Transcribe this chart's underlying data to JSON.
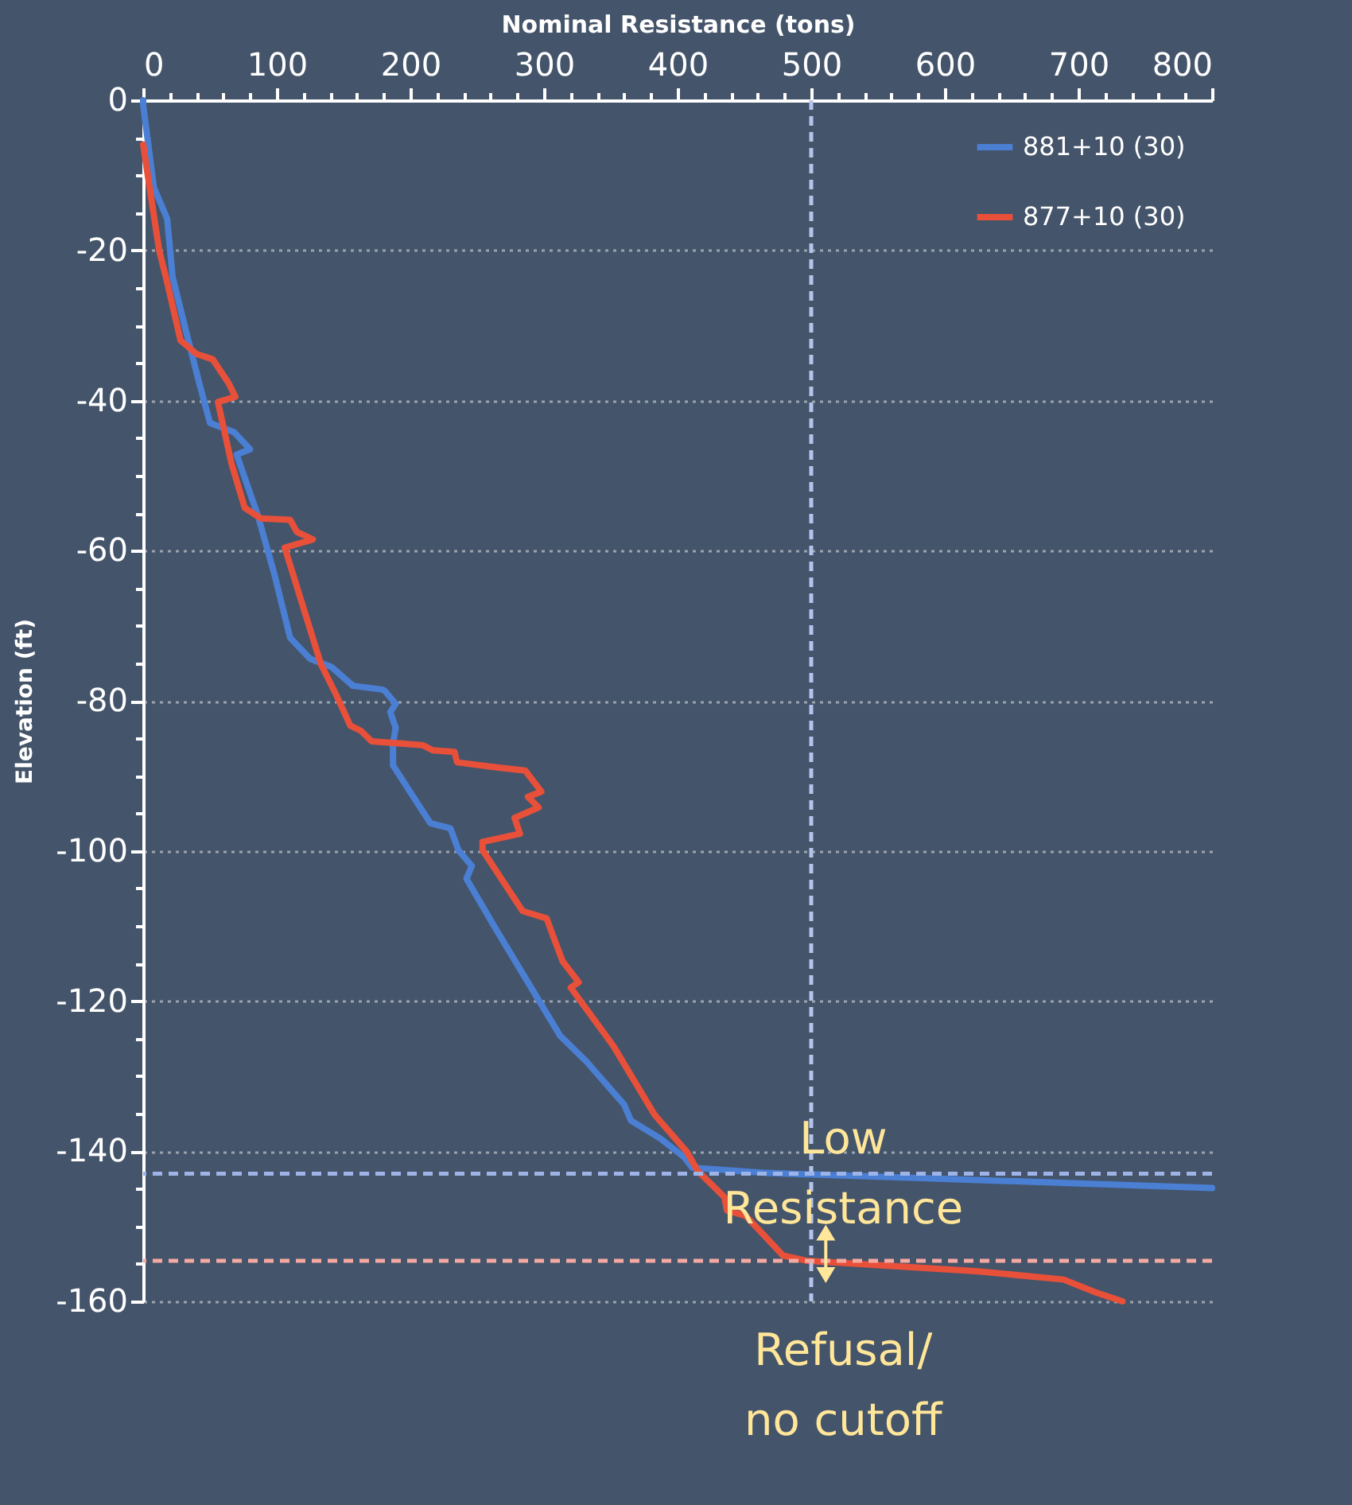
{
  "chart_data": {
    "type": "line",
    "xlabel": "Nominal Resistance (tons)",
    "ylabel": "Elevation (ft)",
    "xlim": [
      0,
      800
    ],
    "ylim": [
      -160,
      0
    ],
    "xticks": [
      0,
      {
        "value": 20,
        "label": null
      },
      {
        "value": 40,
        "label": null
      },
      {
        "value": 60,
        "label": null
      },
      {
        "value": 80,
        "label": null
      },
      100,
      {
        "value": 120,
        "label": null
      },
      {
        "value": 140,
        "label": null
      },
      {
        "value": 160,
        "label": null
      },
      {
        "value": 180,
        "label": null
      },
      200,
      {
        "value": 220,
        "label": null
      },
      {
        "value": 240,
        "label": null
      },
      {
        "value": 260,
        "label": null
      },
      {
        "value": 280,
        "label": null
      },
      300,
      {
        "value": 320,
        "label": null
      },
      {
        "value": 340,
        "label": null
      },
      {
        "value": 360,
        "label": null
      },
      {
        "value": 380,
        "label": null
      },
      400,
      {
        "value": 420,
        "label": null
      },
      {
        "value": 440,
        "label": null
      },
      {
        "value": 460,
        "label": null
      },
      {
        "value": 480,
        "label": null
      },
      500,
      {
        "value": 520,
        "label": null
      },
      {
        "value": 540,
        "label": null
      },
      {
        "value": 560,
        "label": null
      },
      {
        "value": 580,
        "label": null
      },
      600,
      {
        "value": 620,
        "label": null
      },
      {
        "value": 640,
        "label": null
      },
      {
        "value": 660,
        "label": null
      },
      {
        "value": 680,
        "label": null
      },
      700,
      {
        "value": 720,
        "label": null
      },
      {
        "value": 740,
        "label": null
      },
      {
        "value": 760,
        "label": null
      },
      {
        "value": 780,
        "label": null
      },
      800
    ],
    "yticks": [
      0,
      {
        "value": -5,
        "label": null
      },
      {
        "value": -10,
        "label": null
      },
      {
        "value": -15,
        "label": null
      },
      -20,
      {
        "value": -25,
        "label": null
      },
      {
        "value": -30,
        "label": null
      },
      {
        "value": -35,
        "label": null
      },
      -40,
      {
        "value": -45,
        "label": null
      },
      {
        "value": -50,
        "label": null
      },
      {
        "value": -55,
        "label": null
      },
      -60,
      {
        "value": -65,
        "label": null
      },
      {
        "value": -70,
        "label": null
      },
      {
        "value": -75,
        "label": null
      },
      -80,
      {
        "value": -85,
        "label": null
      },
      {
        "value": -90,
        "label": null
      },
      {
        "value": -95,
        "label": null
      },
      -100,
      {
        "value": -105,
        "label": null
      },
      {
        "value": -110,
        "label": null
      },
      {
        "value": -115,
        "label": null
      },
      -120,
      {
        "value": -125,
        "label": null
      },
      {
        "value": -130,
        "label": null
      },
      {
        "value": -135,
        "label": null
      },
      -140,
      {
        "value": -145,
        "label": null
      },
      {
        "value": -150,
        "label": null
      },
      {
        "value": -155,
        "label": null
      },
      -160
    ],
    "grid": "y",
    "legend": "top right",
    "marker": "none",
    "line_style": "solid",
    "series": [
      {
        "name": "881+10 (30)",
        "color": "#4a7fd4",
        "x": [
          0,
          0,
          8,
          18,
          22,
          32,
          42,
          50,
          68,
          80,
          70,
          86,
          98,
          110,
          125,
          141,
          157,
          179,
          181,
          189,
          185,
          189,
          187,
          187,
          215,
          230,
          236,
          246,
          242,
          264,
          288,
          312,
          332,
          360,
          365,
          387,
          405,
          411,
          467,
          586,
          800
        ],
        "values": [
          0,
          -0.6,
          -11.6,
          -15.8,
          -23.5,
          -30.7,
          -37.7,
          -43,
          -44.2,
          -46.5,
          -47.2,
          -55.4,
          -63,
          -71.6,
          -74.4,
          -75.5,
          -78,
          -78.5,
          -78.7,
          -80.4,
          -81.5,
          -83.6,
          -85.7,
          -88.6,
          -96.3,
          -97,
          -99.9,
          -102,
          -103.7,
          -110.4,
          -117.5,
          -124.6,
          -128.1,
          -133.8,
          -135.9,
          -138.3,
          -140.8,
          -142.2,
          -142.9,
          -143.6,
          -144.9
        ]
      },
      {
        "name": "877+10 (30)",
        "color": "#e8503a",
        "x": [
          0,
          6,
          12,
          18,
          28,
          40,
          52,
          64,
          69,
          56,
          66,
          76,
          88,
          110,
          115,
          127,
          106,
          133,
          145,
          155,
          163,
          171,
          209,
          217,
          233,
          235,
          266,
          286,
          298,
          288,
          296,
          278,
          282,
          254,
          254,
          284,
          302,
          308,
          314,
          326,
          320,
          352,
          383,
          407,
          415,
          435,
          437,
          451,
          479,
          497,
          625,
          689,
          713,
          733
        ],
        "values": [
          -5.9,
          -13,
          -20,
          -24.3,
          -32,
          -33.8,
          -34.5,
          -37.7,
          -39.5,
          -40.2,
          -48.3,
          -54.3,
          -55.7,
          -55.9,
          -57.5,
          -58.5,
          -59.6,
          -75.1,
          -79.4,
          -83.3,
          -84,
          -85.4,
          -85.9,
          -86.6,
          -86.8,
          -88.2,
          -88.9,
          -89.3,
          -92.1,
          -92.8,
          -94.2,
          -95.6,
          -97.7,
          -98.8,
          -99.9,
          -108,
          -109,
          -111.9,
          -114.7,
          -117.5,
          -118.2,
          -126,
          -135.2,
          -140.1,
          -142.6,
          -146.1,
          -147.9,
          -148.6,
          -153.9,
          -154.6,
          -156,
          -157.1,
          -158.8,
          -160
        ]
      }
    ],
    "ref_lines": [
      {
        "axis": "x",
        "value": 500,
        "color": "#b4c4ec",
        "line_style": "dashed"
      },
      {
        "axis": "y",
        "value": -143,
        "color": "#9fb4e6",
        "line_style": "dashed"
      },
      {
        "axis": "y",
        "value": -154.6,
        "color": "#f4aaa2",
        "line_style": "dashed"
      }
    ],
    "annotations": [
      "Low\nResistance",
      "Refusal/\nno cutoff"
    ]
  }
}
